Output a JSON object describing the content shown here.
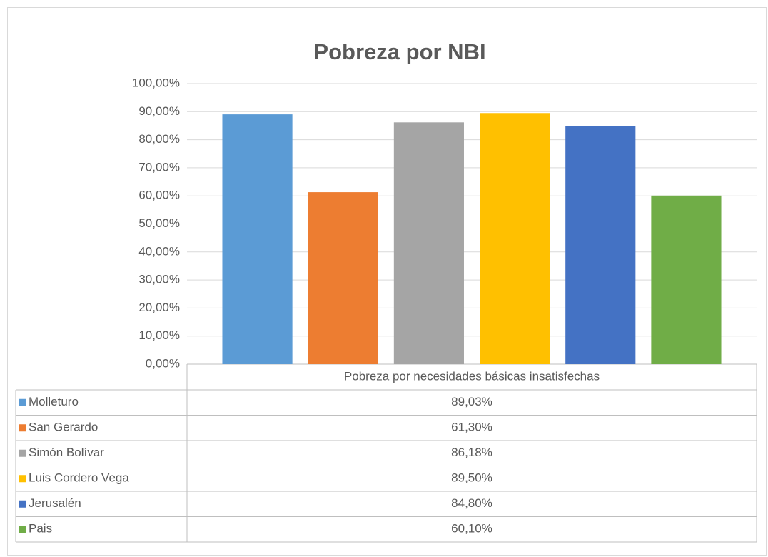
{
  "chart_data": {
    "type": "bar",
    "title": "Pobreza por NBI",
    "categories": [
      "Pobreza por necesidades básicas insatisfechas"
    ],
    "series": [
      {
        "name": "Molleturo",
        "color": "#5b9bd5",
        "values": [
          89.03
        ],
        "value_labels": [
          "89,03%"
        ]
      },
      {
        "name": "San Gerardo",
        "color": "#ed7d31",
        "values": [
          61.3
        ],
        "value_labels": [
          "61,30%"
        ]
      },
      {
        "name": "Simón Bolívar",
        "color": "#a5a5a5",
        "values": [
          86.18
        ],
        "value_labels": [
          "86,18%"
        ]
      },
      {
        "name": "Luis Cordero Vega",
        "color": "#ffc000",
        "values": [
          89.5
        ],
        "value_labels": [
          "89,50%"
        ]
      },
      {
        "name": "Jerusalén",
        "color": "#4472c4",
        "values": [
          84.8
        ],
        "value_labels": [
          "84,80%"
        ]
      },
      {
        "name": "Pais",
        "color": "#70ad47",
        "values": [
          60.1
        ],
        "value_labels": [
          "60,10%"
        ]
      }
    ],
    "ylim": [
      0,
      100
    ],
    "yticks": [
      {
        "value": 0,
        "label": "0,00%"
      },
      {
        "value": 10,
        "label": "10,00%"
      },
      {
        "value": 20,
        "label": "20,00%"
      },
      {
        "value": 30,
        "label": "30,00%"
      },
      {
        "value": 40,
        "label": "40,00%"
      },
      {
        "value": 50,
        "label": "50,00%"
      },
      {
        "value": 60,
        "label": "60,00%"
      },
      {
        "value": 70,
        "label": "70,00%"
      },
      {
        "value": 80,
        "label": "80,00%"
      },
      {
        "value": 90,
        "label": "90,00%"
      },
      {
        "value": 100,
        "label": "100,00%"
      }
    ],
    "grid": true
  }
}
